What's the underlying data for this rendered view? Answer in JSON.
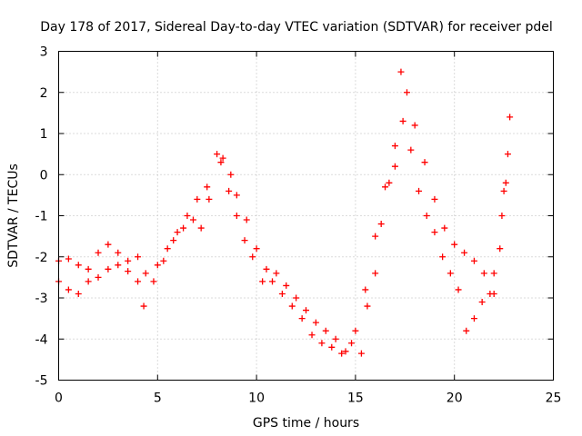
{
  "chart_data": {
    "type": "scatter",
    "title": "Day 178 of 2017, Sidereal Day-to-day VTEC variation (SDTVAR) for receiver pdel",
    "xlabel": "GPS time / hours",
    "ylabel": "SDTVAR / TECUs",
    "xlim": [
      0,
      25
    ],
    "ylim": [
      -5,
      3
    ],
    "xticks": [
      0,
      5,
      10,
      15,
      20,
      25
    ],
    "yticks": [
      -5,
      -4,
      -3,
      -2,
      -1,
      0,
      1,
      2,
      3
    ],
    "grid": true,
    "marker": "plus",
    "color": "#ff0000",
    "series": [
      {
        "name": "SDTVAR",
        "points": [
          [
            0.0,
            -2.1
          ],
          [
            0.5,
            -2.05
          ],
          [
            1.0,
            -2.2
          ],
          [
            1.5,
            -2.3
          ],
          [
            2.0,
            -1.9
          ],
          [
            2.5,
            -1.7
          ],
          [
            3.0,
            -1.9
          ],
          [
            3.5,
            -2.1
          ],
          [
            4.0,
            -2.0
          ],
          [
            4.4,
            -2.4
          ],
          [
            5.0,
            -2.2
          ],
          [
            5.5,
            -1.8
          ],
          [
            6.0,
            -1.4
          ],
          [
            6.5,
            -1.0
          ],
          [
            7.0,
            -0.6
          ],
          [
            7.5,
            -0.3
          ],
          [
            8.0,
            0.5
          ],
          [
            8.3,
            0.4
          ],
          [
            8.7,
            0.0
          ],
          [
            9.0,
            -0.5
          ],
          [
            9.5,
            -1.1
          ],
          [
            10.0,
            -1.8
          ],
          [
            10.5,
            -2.3
          ],
          [
            11.0,
            -2.4
          ],
          [
            11.5,
            -2.7
          ],
          [
            12.0,
            -3.0
          ],
          [
            12.5,
            -3.3
          ],
          [
            13.0,
            -3.6
          ],
          [
            13.5,
            -3.8
          ],
          [
            14.0,
            -4.0
          ],
          [
            14.5,
            -4.3
          ],
          [
            15.0,
            -3.8
          ],
          [
            15.5,
            -2.8
          ],
          [
            16.0,
            -1.5
          ],
          [
            16.5,
            -0.3
          ],
          [
            17.0,
            0.7
          ],
          [
            17.3,
            2.5
          ],
          [
            17.6,
            2.0
          ],
          [
            18.0,
            1.2
          ],
          [
            18.5,
            0.3
          ],
          [
            19.0,
            -0.6
          ],
          [
            19.5,
            -1.3
          ],
          [
            20.0,
            -1.7
          ],
          [
            20.5,
            -1.9
          ],
          [
            21.0,
            -2.1
          ],
          [
            21.5,
            -2.4
          ],
          [
            22.0,
            -2.9
          ],
          [
            22.3,
            -1.8
          ],
          [
            22.5,
            -0.4
          ],
          [
            22.7,
            0.5
          ],
          [
            22.8,
            1.4
          ],
          [
            0.0,
            -2.6
          ],
          [
            0.5,
            -2.8
          ],
          [
            1.0,
            -2.9
          ],
          [
            1.5,
            -2.6
          ],
          [
            2.0,
            -2.5
          ],
          [
            2.5,
            -2.3
          ],
          [
            3.0,
            -2.2
          ],
          [
            3.5,
            -2.35
          ],
          [
            4.0,
            -2.6
          ],
          [
            4.3,
            -3.2
          ],
          [
            4.8,
            -2.6
          ],
          [
            5.3,
            -2.1
          ],
          [
            5.8,
            -1.6
          ],
          [
            6.3,
            -1.3
          ],
          [
            6.8,
            -1.1
          ],
          [
            7.2,
            -1.3
          ],
          [
            7.6,
            -0.6
          ],
          [
            8.2,
            0.3
          ],
          [
            8.6,
            -0.4
          ],
          [
            9.0,
            -1.0
          ],
          [
            9.4,
            -1.6
          ],
          [
            9.8,
            -2.0
          ],
          [
            10.3,
            -2.6
          ],
          [
            10.8,
            -2.6
          ],
          [
            11.3,
            -2.9
          ],
          [
            11.8,
            -3.2
          ],
          [
            12.3,
            -3.5
          ],
          [
            12.8,
            -3.9
          ],
          [
            13.3,
            -4.1
          ],
          [
            13.8,
            -4.2
          ],
          [
            14.3,
            -4.35
          ],
          [
            14.8,
            -4.1
          ],
          [
            15.3,
            -4.35
          ],
          [
            15.6,
            -3.2
          ],
          [
            16.0,
            -2.4
          ],
          [
            16.3,
            -1.2
          ],
          [
            16.7,
            -0.2
          ],
          [
            17.0,
            0.2
          ],
          [
            17.4,
            1.3
          ],
          [
            17.8,
            0.6
          ],
          [
            18.2,
            -0.4
          ],
          [
            18.6,
            -1.0
          ],
          [
            19.0,
            -1.4
          ],
          [
            19.4,
            -2.0
          ],
          [
            19.8,
            -2.4
          ],
          [
            20.2,
            -2.8
          ],
          [
            20.6,
            -3.8
          ],
          [
            21.0,
            -3.5
          ],
          [
            21.4,
            -3.1
          ],
          [
            21.8,
            -2.9
          ],
          [
            22.0,
            -2.4
          ],
          [
            22.4,
            -1.0
          ],
          [
            22.6,
            -0.2
          ]
        ]
      }
    ]
  }
}
